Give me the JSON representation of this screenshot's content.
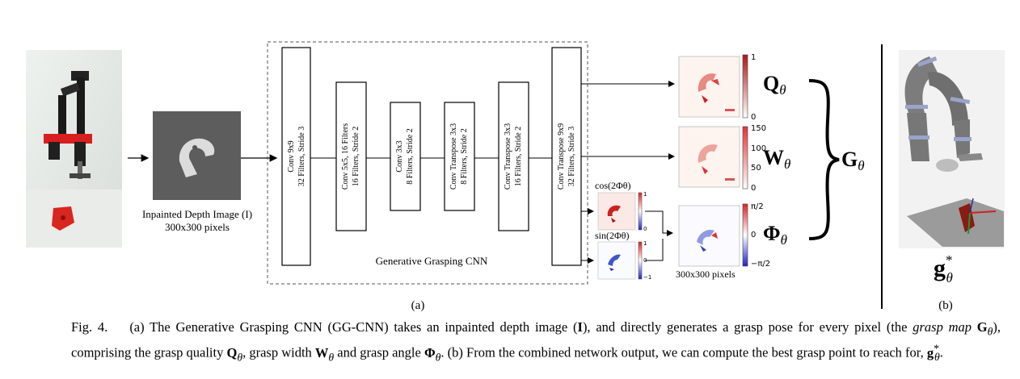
{
  "input": {
    "label_line1": "Inpainted Depth Image (I)",
    "label_line2": "300x300 pixels"
  },
  "layers": [
    {
      "name": "Conv 9x9",
      "detail": "32 Filters, Stride 3"
    },
    {
      "name": "Conv 5x5, 16 Filters",
      "detail": "16 Filters, Stride 2"
    },
    {
      "name": "Conv 3x3",
      "detail": "8 Filters, Stride 2"
    },
    {
      "name": "Conv Transpose 3x3",
      "detail": "8 Filters, Stride 2"
    },
    {
      "name": "Conv Transpose 3x3",
      "detail": "16 Filters, Stride 2"
    },
    {
      "name": "Conv Transpose 9x9",
      "detail": "32 Filters, Stride 3"
    }
  ],
  "network_label": "Generative Grasping CNN",
  "outputs": {
    "q_symbol": "Q",
    "w_symbol": "W",
    "phi_symbol": "Φ",
    "theta": "θ",
    "g_symbol": "G",
    "q_ticks": [
      "1",
      "0"
    ],
    "w_ticks": [
      "150",
      "100",
      "50",
      "0"
    ],
    "phi_ticks": [
      "π/2",
      "0",
      "−π/2"
    ],
    "cos_label": "cos(2Φθ)",
    "sin_label": "sin(2Φθ)",
    "cos_ticks": [
      "1",
      "0"
    ],
    "sin_ticks": [
      "1",
      "0",
      "−1"
    ],
    "size_label": "300x300 pixels"
  },
  "panel_a": "(a)",
  "panel_b": "(b)",
  "g_star": "g",
  "g_star_sup": "*",
  "g_star_sub": "θ",
  "caption": {
    "fig": "Fig. 4.",
    "part1": "(a) The Generative Grasping CNN (GG-CNN) takes an inpainted depth image (",
    "I": "I",
    "part2": "), and directly generates a grasp pose for every pixel (the ",
    "grasp_map": "grasp map",
    "part3": "), comprising the grasp quality ",
    "part4": ", grasp width ",
    "part5": " and grasp angle ",
    "part6": ". (b) From the combined network output, we can compute the best grasp point to reach for, ",
    "end": "."
  },
  "colors": {
    "red": "#c0252a",
    "blue": "#2233aa",
    "robot_grey": "#7c7c7c",
    "ring": "#9aa3c8"
  }
}
